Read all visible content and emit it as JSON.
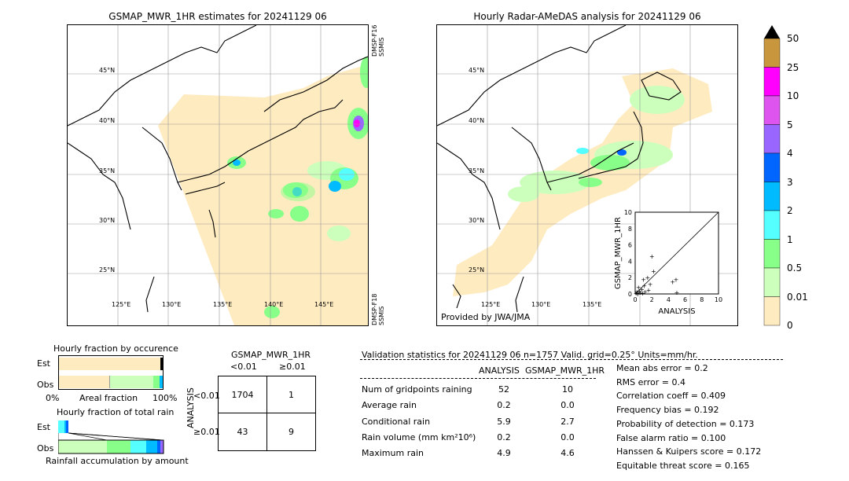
{
  "left_map": {
    "title": "GSMAP_MWR_1HR estimates for 20241129 06",
    "lat_labels": [
      "45°N",
      "40°N",
      "35°N",
      "30°N",
      "25°N"
    ],
    "lon_labels": [
      "125°E",
      "130°E",
      "135°E",
      "140°E",
      "145°E"
    ],
    "sat_label_top": "DMSP-F16\nSSMIS",
    "sat_label_bottom": "DMSP-F18\nSSMIS"
  },
  "right_map": {
    "title": "Hourly Radar-AMeDAS analysis for 20241129 06",
    "lat_labels": [
      "45°N",
      "40°N",
      "35°N",
      "30°N",
      "25°N"
    ],
    "lon_labels": [
      "125°E",
      "130°E",
      "135°E"
    ],
    "credit": "Provided by JWA/JMA"
  },
  "scatter": {
    "xlabel": "ANALYSIS",
    "ylabel": "GSMAP_MWR_1HR",
    "ticks": [
      "0",
      "2",
      "4",
      "6",
      "8",
      "10"
    ],
    "points": [
      [
        0.1,
        0.1
      ],
      [
        0.2,
        0.3
      ],
      [
        0.3,
        0.1
      ],
      [
        0.5,
        0.4
      ],
      [
        0.6,
        0.2
      ],
      [
        0.8,
        0.6
      ],
      [
        1.0,
        1.8
      ],
      [
        1.2,
        0.3
      ],
      [
        1.5,
        2.0
      ],
      [
        1.8,
        1.2
      ],
      [
        2.0,
        4.6
      ],
      [
        2.2,
        2.8
      ],
      [
        0.4,
        0.8
      ],
      [
        0.9,
        0.1
      ],
      [
        1.1,
        1.0
      ],
      [
        4.5,
        1.5
      ],
      [
        4.9,
        1.8
      ],
      [
        5.0,
        0.2
      ],
      [
        0.3,
        0.0
      ],
      [
        1.6,
        0.5
      ]
    ]
  },
  "colorbar": {
    "labels": [
      "50",
      "25",
      "10",
      "5",
      "4",
      "3",
      "2",
      "1",
      "0.5",
      "0.01",
      "0"
    ],
    "colors": [
      "#c8963c",
      "#ff00ff",
      "#dd55ee",
      "#9966ff",
      "#0066ff",
      "#00bbff",
      "#55ffff",
      "#88ff88",
      "#ccffbb",
      "#ffebc0"
    ]
  },
  "occurrence": {
    "title": "Hourly fraction by occurence",
    "est_label": "Est",
    "obs_label": "Obs",
    "axis_left": "0%",
    "axis_mid": "Areal fraction",
    "axis_right": "100%"
  },
  "total_rain": {
    "title": "Hourly fraction of total rain",
    "est_label": "Est",
    "obs_label": "Obs",
    "axis_label": "Rainfall accumulation by amount"
  },
  "contingency": {
    "title": "GSMAP_MWR_1HR",
    "col1": "<0.01",
    "col2": "≥0.01",
    "row_axis": "ANALYSIS",
    "row1": "<0.01",
    "row2": "≥0.01",
    "cells": [
      "1704",
      "1",
      "43",
      "9"
    ]
  },
  "validation": {
    "header": "Validation statistics for 20241129 06  n=1757 Valid. grid=0.25° Units=mm/hr.",
    "col_analysis": "ANALYSIS",
    "col_gsmap": "GSMAP_MWR_1HR",
    "rows": [
      {
        "label": "Num of gridpoints raining",
        "a": "52",
        "g": "10"
      },
      {
        "label": "Average rain",
        "a": "0.2",
        "g": "0.0"
      },
      {
        "label": "Conditional rain",
        "a": "5.9",
        "g": "2.7"
      },
      {
        "label": "Rain volume (mm km²10⁶)",
        "a": "0.2",
        "g": "0.0"
      },
      {
        "label": "Maximum rain",
        "a": "4.9",
        "g": "4.6"
      }
    ],
    "scores": [
      "Mean abs error =    0.2",
      "RMS error =    0.4",
      "Correlation coeff =  0.409",
      "Frequency bias =  0.192",
      "Probability of detection =  0.173",
      "False alarm ratio =  0.100",
      "Hanssen & Kuipers score =  0.172",
      "Equitable threat score =  0.165"
    ]
  }
}
